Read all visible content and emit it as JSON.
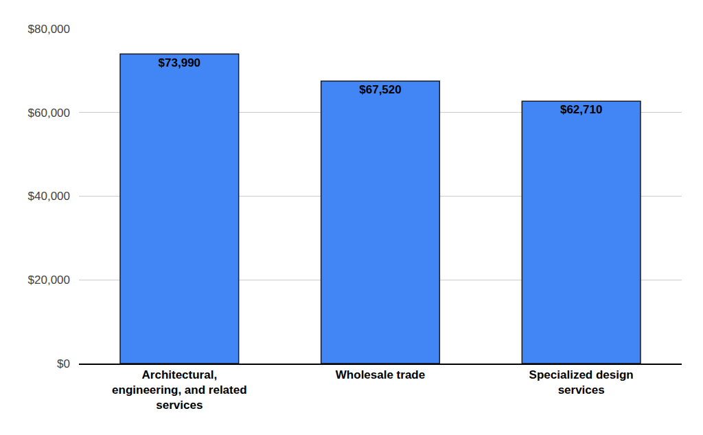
{
  "chart_data": {
    "type": "bar",
    "categories": [
      "Architectural, engineering, and related services",
      "Wholesale trade",
      "Specialized design services"
    ],
    "values": [
      73990,
      67520,
      62710
    ],
    "value_labels": [
      "$73,990",
      "$67,520",
      "$62,710"
    ],
    "color": "#4285f4",
    "ylim": [
      0,
      80000
    ],
    "yticks": [
      {
        "value": 0,
        "label": "$0"
      },
      {
        "value": 20000,
        "label": "$20,000"
      },
      {
        "value": 40000,
        "label": "$40,000"
      },
      {
        "value": 60000,
        "label": "$60,000"
      },
      {
        "value": 80000,
        "label": "$80,000"
      }
    ],
    "grid": true,
    "data_labels": true
  }
}
